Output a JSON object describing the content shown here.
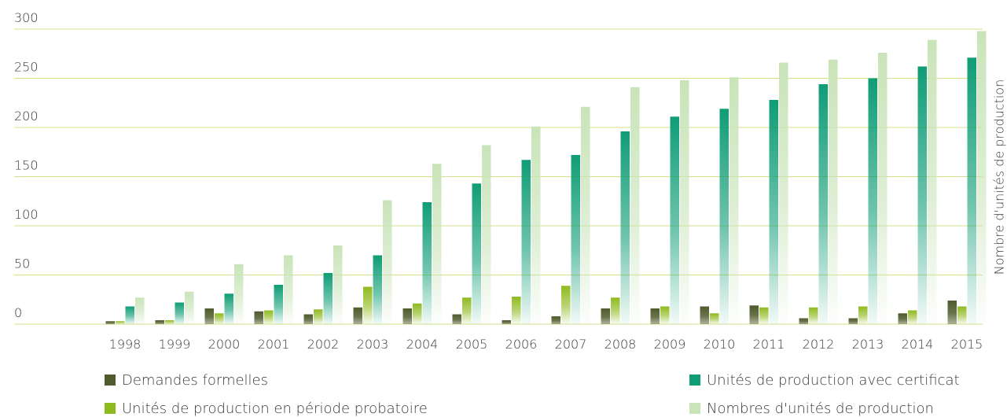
{
  "chart_data": {
    "type": "bar",
    "y_label": "Nombre d'unités de production",
    "categories": [
      "1998",
      "1999",
      "2000",
      "2001",
      "2002",
      "2003",
      "2004",
      "2005",
      "2006",
      "2007",
      "2008",
      "2009",
      "2010",
      "2011",
      "2012",
      "2013",
      "2014",
      "2015"
    ],
    "series": [
      {
        "name": "Demandes formelles",
        "color": "#4f5b2c",
        "values": [
          3,
          4,
          16,
          13,
          10,
          17,
          16,
          10,
          4,
          8,
          16,
          16,
          18,
          19,
          6,
          6,
          11,
          24
        ]
      },
      {
        "name": "Unités de production en période probatoire",
        "color": "#8fba1f",
        "values": [
          3,
          4,
          11,
          14,
          15,
          38,
          21,
          27,
          28,
          39,
          27,
          18,
          11,
          17,
          17,
          18,
          14,
          18
        ]
      },
      {
        "name": "Unités de production avec certificat",
        "color": "#0f9d76",
        "values": [
          18,
          22,
          31,
          40,
          52,
          70,
          124,
          143,
          167,
          172,
          196,
          211,
          219,
          228,
          244,
          250,
          262,
          271
        ]
      },
      {
        "name": "Nombres d'unités de production",
        "color": "#c9e4b9",
        "values": [
          27,
          33,
          61,
          70,
          80,
          126,
          163,
          182,
          201,
          221,
          241,
          248,
          251,
          266,
          269,
          276,
          289,
          298
        ]
      }
    ],
    "ylim": [
      0,
      300
    ],
    "yticks": [
      0,
      50,
      100,
      150,
      200,
      250,
      300
    ],
    "grid": true,
    "legend": "bottom"
  }
}
